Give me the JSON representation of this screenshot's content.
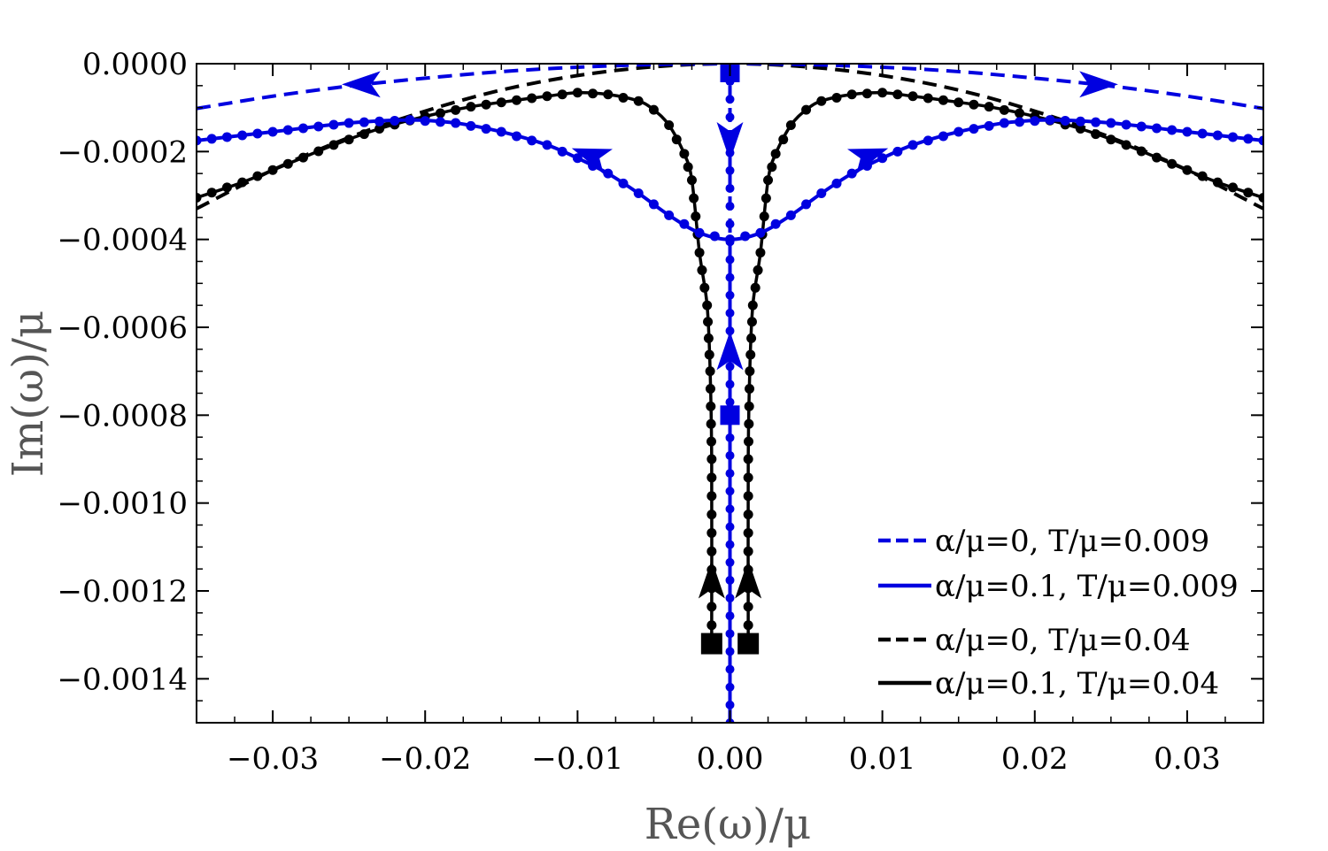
{
  "chart_data": {
    "type": "line",
    "title": "",
    "xlabel": "Re(ω)/μ",
    "ylabel": "Im(ω)/μ",
    "xlim": [
      -0.035,
      0.035
    ],
    "ylim": [
      -0.0015,
      0.0
    ],
    "xticks": [
      -0.03,
      -0.02,
      -0.01,
      0.0,
      0.01,
      0.02,
      0.03
    ],
    "xtick_labels": [
      "−0.03",
      "−0.02",
      "−0.01",
      "0.00",
      "0.01",
      "0.02",
      "0.03"
    ],
    "yticks": [
      0.0,
      -0.0002,
      -0.0004,
      -0.0006,
      -0.0008,
      -0.001,
      -0.0012,
      -0.0014
    ],
    "ytick_labels": [
      "0.0000",
      "−0.0002",
      "−0.0004",
      "−0.0006",
      "−0.0008",
      "−0.0010",
      "−0.0012",
      "−0.0014"
    ],
    "legend_position": "bottom-right",
    "series": [
      {
        "name": "α/μ=0, T/μ=0.009",
        "legend_label": "α/μ=0, T/μ=0.009",
        "color": "#0000e0",
        "style": "dashed",
        "x": [
          -0.035,
          -0.03,
          -0.025,
          -0.02,
          -0.015,
          -0.01,
          -0.005,
          0.0,
          0.005,
          0.01,
          0.015,
          0.02,
          0.025,
          0.03,
          0.035
        ],
        "y": [
          -0.000102,
          -7.4e-05,
          -5.1e-05,
          -3.3e-05,
          -1.8e-05,
          -8e-06,
          -2e-06,
          0.0,
          -2e-06,
          -8e-06,
          -1.8e-05,
          -3.3e-05,
          -5.1e-05,
          -7.4e-05,
          -0.000102
        ],
        "branch_vertical": {
          "x": 0.0,
          "y": [
            0.0,
            -0.0015
          ]
        },
        "start_markers": [
          {
            "x": 0.0,
            "y": -2e-05
          },
          {
            "x": 0.0,
            "y": -0.0008
          }
        ],
        "arrows": [
          {
            "x": -0.024,
            "y": -4.7e-05,
            "dir": "left"
          },
          {
            "x": 0.024,
            "y": -4.7e-05,
            "dir": "right"
          },
          {
            "x": 0.0,
            "y": -0.00017,
            "dir": "down"
          },
          {
            "x": 0.0,
            "y": -0.00066,
            "dir": "up"
          }
        ]
      },
      {
        "name": "α/μ=0.1, T/μ=0.009",
        "legend_label": "α/μ=0.1, T/μ=0.009",
        "color": "#0000e0",
        "style": "solid-with-markers",
        "x": [
          -0.035,
          -0.03,
          -0.025,
          -0.021,
          -0.018,
          -0.015,
          -0.012,
          -0.01,
          -0.008,
          -0.006,
          -0.004,
          -0.002,
          0.0,
          0.002,
          0.004,
          0.006,
          0.008,
          0.01,
          0.012,
          0.015,
          0.018,
          0.021,
          0.025,
          0.03,
          0.035
        ],
        "y": [
          -0.000175,
          -0.000155,
          -0.000135,
          -0.000128,
          -0.000135,
          -0.000155,
          -0.000185,
          -0.000215,
          -0.00025,
          -0.000295,
          -0.000345,
          -0.000385,
          -0.0004,
          -0.000385,
          -0.000345,
          -0.000295,
          -0.00025,
          -0.000215,
          -0.000185,
          -0.000155,
          -0.000135,
          -0.000128,
          -0.000135,
          -0.000155,
          -0.000175
        ],
        "branch_vertical": {
          "x": 0.0,
          "y": [
            -0.0004,
            -0.0015
          ]
        },
        "arrows": [
          {
            "x": -0.009,
            "y": -0.00021,
            "dir": "up-left"
          },
          {
            "x": 0.009,
            "y": -0.00021,
            "dir": "up-right"
          }
        ]
      },
      {
        "name": "α/μ=0, T/μ=0.04",
        "legend_label": "α/μ=0, T/μ=0.04",
        "color": "#000000",
        "style": "dashed",
        "x": [
          -0.035,
          -0.03,
          -0.025,
          -0.02,
          -0.015,
          -0.01,
          -0.005,
          0.0,
          0.005,
          0.01,
          0.015,
          0.02,
          0.025,
          0.03,
          0.035
        ],
        "y": [
          -0.00033,
          -0.000242,
          -0.000168,
          -0.000108,
          -6e-05,
          -2.7e-05,
          -7e-06,
          0.0,
          -7e-06,
          -2.7e-05,
          -6e-05,
          -0.000108,
          -0.000168,
          -0.000242,
          -0.00033
        ]
      },
      {
        "name": "α/μ=0.1, T/μ=0.04",
        "legend_label": "α/μ=0.1, T/μ=0.04",
        "color": "#000000",
        "style": "solid-with-markers",
        "left_branch": {
          "x": [
            -0.035,
            -0.032,
            -0.029,
            -0.026,
            -0.023,
            -0.02,
            -0.017,
            -0.014,
            -0.012,
            -0.01,
            -0.008,
            -0.006,
            -0.005,
            -0.004,
            -0.003,
            -0.0025,
            -0.002,
            -0.0015,
            -0.0013,
            -0.0012,
            -0.0012
          ],
          "y": [
            -0.000305,
            -0.00027,
            -0.000228,
            -0.000185,
            -0.000148,
            -0.00012,
            -9.8e-05,
            -8.3e-05,
            -7.4e-05,
            -6.6e-05,
            -7e-05,
            -8.5e-05,
            -0.000105,
            -0.00014,
            -0.000205,
            -0.000265,
            -0.00043,
            -0.00055,
            -0.0007,
            -0.0009,
            -0.00132
          ]
        },
        "right_branch": {
          "x": [
            0.035,
            0.032,
            0.029,
            0.026,
            0.023,
            0.02,
            0.017,
            0.014,
            0.012,
            0.01,
            0.008,
            0.006,
            0.005,
            0.004,
            0.003,
            0.0025,
            0.002,
            0.0015,
            0.0013,
            0.0012,
            0.0012
          ],
          "y": [
            -0.000305,
            -0.00027,
            -0.000228,
            -0.000185,
            -0.000148,
            -0.00012,
            -9.8e-05,
            -8.3e-05,
            -7.4e-05,
            -6.6e-05,
            -7e-05,
            -8.5e-05,
            -0.000105,
            -0.00014,
            -0.000205,
            -0.000265,
            -0.00043,
            -0.00055,
            -0.0007,
            -0.0009,
            -0.00132
          ]
        },
        "start_markers": [
          {
            "x": -0.0012,
            "y": -0.00132
          },
          {
            "x": 0.0012,
            "y": -0.00132
          }
        ],
        "arrows": [
          {
            "x": -0.0012,
            "y": -0.00118,
            "dir": "up"
          },
          {
            "x": 0.0012,
            "y": -0.00118,
            "dir": "up"
          }
        ]
      }
    ]
  }
}
